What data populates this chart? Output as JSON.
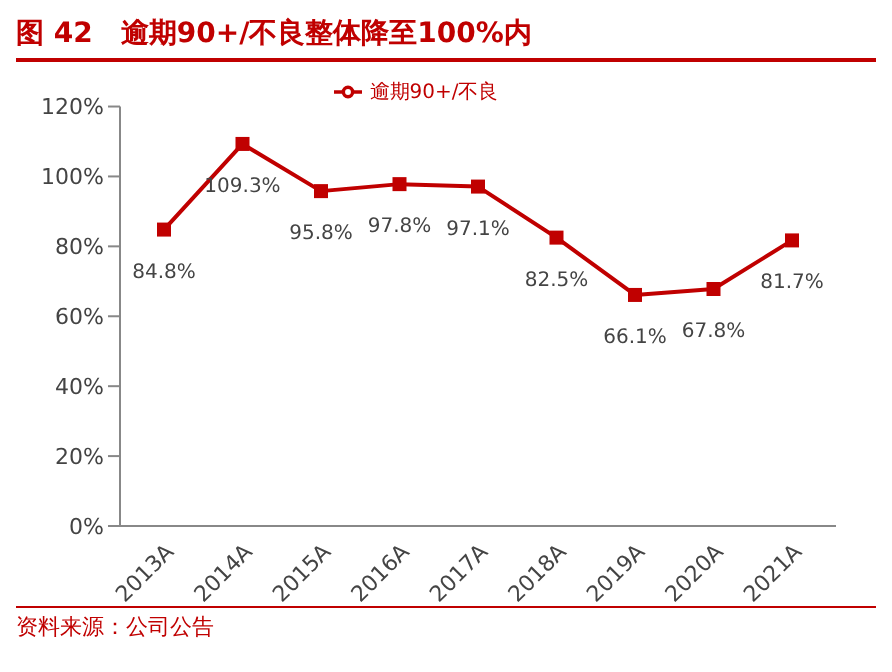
{
  "chart_data": {
    "type": "line",
    "title": "图 42　逾期90+/不良整体降至100%内",
    "categories": [
      "2013A",
      "2014A",
      "2015A",
      "2016A",
      "2017A",
      "2018A",
      "2019A",
      "2020A",
      "2021A"
    ],
    "series": [
      {
        "name": "逾期90+/不良",
        "color": "#c00000",
        "values": [
          84.8,
          109.3,
          95.8,
          97.8,
          97.1,
          82.5,
          66.1,
          67.8,
          81.7
        ],
        "value_labels": [
          "84.8%",
          "109.3%",
          "95.8%",
          "97.8%",
          "97.1%",
          "82.5%",
          "66.1%",
          "67.8%",
          "81.7%"
        ]
      }
    ],
    "ylim": [
      0,
      120
    ],
    "yticks": [
      {
        "value": 0,
        "label": "0%"
      },
      {
        "value": 20,
        "label": "20%"
      },
      {
        "value": 40,
        "label": "40%"
      },
      {
        "value": 60,
        "label": "60%"
      },
      {
        "value": 80,
        "label": "80%"
      },
      {
        "value": 100,
        "label": "100%"
      },
      {
        "value": 120,
        "label": "120%"
      }
    ],
    "grid": false,
    "legend": "top",
    "marker": "square",
    "line_style": "solid",
    "annotations": [
      "资料来源：公司公告"
    ]
  }
}
